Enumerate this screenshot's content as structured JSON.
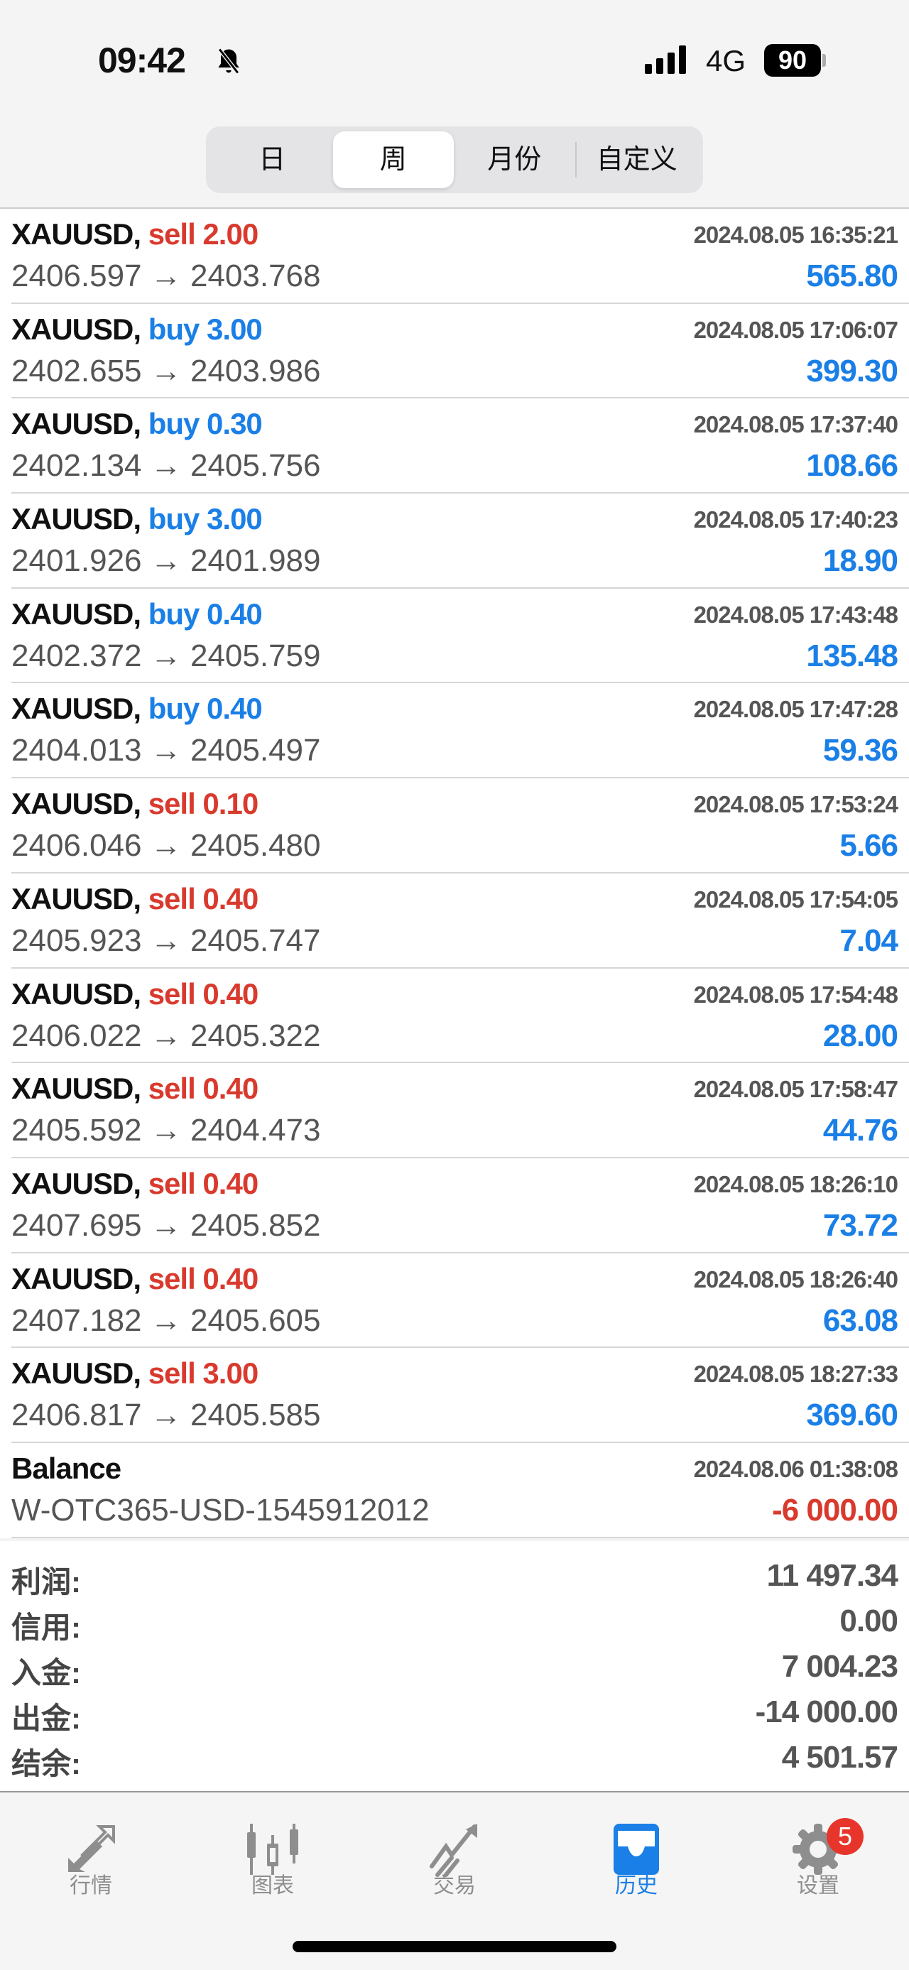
{
  "status_bar": {
    "time": "09:42",
    "network": "4G",
    "battery": "90"
  },
  "segments": [
    {
      "label": "日"
    },
    {
      "label": "周",
      "active": true
    },
    {
      "label": "月份"
    },
    {
      "label": "自定义"
    }
  ],
  "deals": [
    {
      "symbol": "XAUUSD,",
      "side": "sell 2.00",
      "type": "sell",
      "datetime": "2024.08.05 16:35:21",
      "prices": "2406.597 → 2403.768",
      "profit": "565.80"
    },
    {
      "symbol": "XAUUSD,",
      "side": "buy 3.00",
      "type": "buy",
      "datetime": "2024.08.05 17:06:07",
      "prices": "2402.655 → 2403.986",
      "profit": "399.30"
    },
    {
      "symbol": "XAUUSD,",
      "side": "buy 0.30",
      "type": "buy",
      "datetime": "2024.08.05 17:37:40",
      "prices": "2402.134 → 2405.756",
      "profit": "108.66"
    },
    {
      "symbol": "XAUUSD,",
      "side": "buy 3.00",
      "type": "buy",
      "datetime": "2024.08.05 17:40:23",
      "prices": "2401.926 → 2401.989",
      "profit": "18.90"
    },
    {
      "symbol": "XAUUSD,",
      "side": "buy 0.40",
      "type": "buy",
      "datetime": "2024.08.05 17:43:48",
      "prices": "2402.372 → 2405.759",
      "profit": "135.48"
    },
    {
      "symbol": "XAUUSD,",
      "side": "buy 0.40",
      "type": "buy",
      "datetime": "2024.08.05 17:47:28",
      "prices": "2404.013 → 2405.497",
      "profit": "59.36"
    },
    {
      "symbol": "XAUUSD,",
      "side": "sell 0.10",
      "type": "sell",
      "datetime": "2024.08.05 17:53:24",
      "prices": "2406.046 → 2405.480",
      "profit": "5.66"
    },
    {
      "symbol": "XAUUSD,",
      "side": "sell 0.40",
      "type": "sell",
      "datetime": "2024.08.05 17:54:05",
      "prices": "2405.923 → 2405.747",
      "profit": "7.04"
    },
    {
      "symbol": "XAUUSD,",
      "side": "sell 0.40",
      "type": "sell",
      "datetime": "2024.08.05 17:54:48",
      "prices": "2406.022 → 2405.322",
      "profit": "28.00"
    },
    {
      "symbol": "XAUUSD,",
      "side": "sell 0.40",
      "type": "sell",
      "datetime": "2024.08.05 17:58:47",
      "prices": "2405.592 → 2404.473",
      "profit": "44.76"
    },
    {
      "symbol": "XAUUSD,",
      "side": "sell 0.40",
      "type": "sell",
      "datetime": "2024.08.05 18:26:10",
      "prices": "2407.695 → 2405.852",
      "profit": "73.72"
    },
    {
      "symbol": "XAUUSD,",
      "side": "sell 0.40",
      "type": "sell",
      "datetime": "2024.08.05 18:26:40",
      "prices": "2407.182 → 2405.605",
      "profit": "63.08"
    },
    {
      "symbol": "XAUUSD,",
      "side": "sell 3.00",
      "type": "sell",
      "datetime": "2024.08.05 18:27:33",
      "prices": "2406.817 → 2405.585",
      "profit": "369.60"
    }
  ],
  "balance": {
    "label": "Balance",
    "datetime": "2024.08.06 01:38:08",
    "comment": "W-OTC365-USD-1545912012",
    "amount": "-6 000.00"
  },
  "summary": [
    {
      "label": "利润:",
      "value": "11 497.34"
    },
    {
      "label": "信用:",
      "value": "0.00"
    },
    {
      "label": "入金:",
      "value": "7 004.23"
    },
    {
      "label": "出金:",
      "value": "-14 000.00"
    },
    {
      "label": "结余:",
      "value": "4 501.57"
    }
  ],
  "tabs": [
    {
      "label": "行情",
      "icon": "quotes-arrows-icon"
    },
    {
      "label": "图表",
      "icon": "candlestick-icon"
    },
    {
      "label": "交易",
      "icon": "trade-trend-icon"
    },
    {
      "label": "历史",
      "icon": "history-inbox-icon",
      "active": true
    },
    {
      "label": "设置",
      "icon": "gear-icon",
      "badge": "5"
    }
  ],
  "colors": {
    "buy": "#1a7fe6",
    "sell": "#d93a2e",
    "accent": "#1a7fe6"
  }
}
